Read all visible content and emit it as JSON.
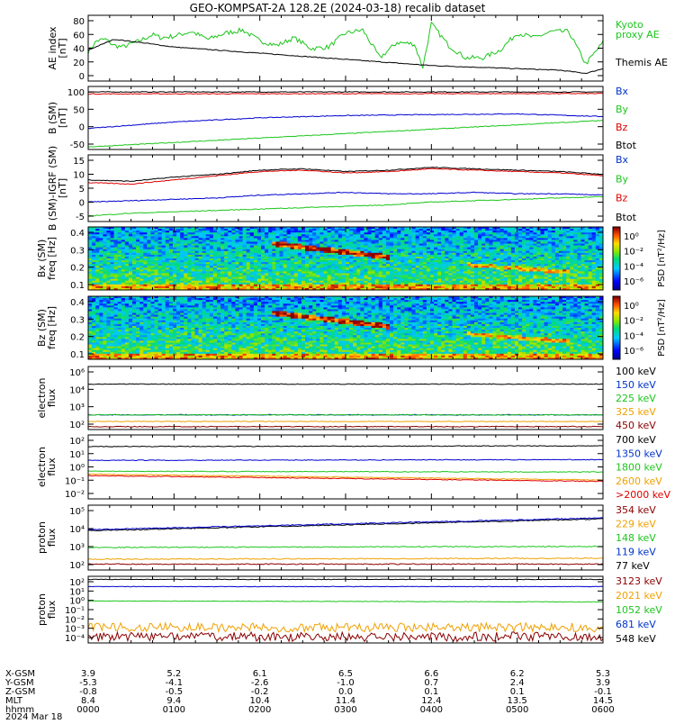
{
  "title": "GEO-KOMPSAT-2A 128.2E (2024-03-18) recalib dataset",
  "colors": {
    "black": "#000000",
    "green": "#1cc61c",
    "red": "#e00000",
    "blue": "#0000d0",
    "orange": "#f0a000",
    "darkred": "#8b0000",
    "legend_blue": "#0033cc"
  },
  "chart_data": [
    {
      "panel": "ae_index",
      "type": "line",
      "ylabel": [
        "AE index",
        "[nT]"
      ],
      "yticks": [
        "80",
        "60",
        "40",
        "20",
        "0"
      ],
      "ylim": [
        0,
        85
      ],
      "legend": [
        {
          "label": "Kyoto\nproxy AE",
          "color": "green"
        },
        {
          "label": "Themis AE",
          "color": "black"
        }
      ],
      "series": [
        {
          "name": "Kyoto proxy AE",
          "color": "green",
          "x": [
            0,
            0.1,
            0.2,
            0.3,
            0.4,
            0.5,
            0.6,
            0.75,
            0.85,
            1,
            1.2,
            1.4,
            1.6,
            1.8,
            2,
            2.2,
            2.4,
            2.6,
            2.8,
            3,
            3.2,
            3.4,
            3.6,
            3.8,
            3.9,
            4,
            4.2,
            4.4,
            4.6,
            4.8,
            5,
            5.2,
            5.4,
            5.6,
            5.8,
            6
          ],
          "y": [
            38,
            52,
            54,
            46,
            44,
            48,
            52,
            60,
            56,
            58,
            64,
            54,
            62,
            66,
            52,
            46,
            56,
            42,
            44,
            62,
            66,
            30,
            50,
            48,
            18,
            74,
            46,
            30,
            30,
            40,
            62,
            56,
            64,
            64,
            22,
            50
          ]
        },
        {
          "name": "Themis AE",
          "color": "black",
          "x": [
            0,
            0.3,
            0.6,
            1,
            1.5,
            2,
            2.5,
            3,
            3.5,
            4,
            4.5,
            5,
            5.5,
            5.8,
            6
          ],
          "y": [
            40,
            54,
            50,
            44,
            40,
            36,
            32,
            28,
            24,
            20,
            18,
            16,
            14,
            10,
            16
          ]
        }
      ]
    },
    {
      "panel": "b_sm",
      "type": "line",
      "ylabel": [
        "B (SM)",
        "[nT]"
      ],
      "yticks": [
        "100",
        "50",
        "0",
        "-50"
      ],
      "ylim": [
        -60,
        135
      ],
      "legend": [
        {
          "label": "Bx",
          "color": "legend_blue"
        },
        {
          "label": "By",
          "color": "green"
        },
        {
          "label": "Bz",
          "color": "red"
        },
        {
          "label": "Btot",
          "color": "black"
        }
      ],
      "series": [
        {
          "name": "Btot",
          "color": "black",
          "x": [
            0,
            6
          ],
          "y": [
            118,
            118
          ]
        },
        {
          "name": "Bz",
          "color": "red",
          "x": [
            0,
            6
          ],
          "y": [
            112,
            113
          ]
        },
        {
          "name": "Bx",
          "color": "blue",
          "x": [
            0,
            1,
            2,
            3,
            4,
            5,
            6
          ],
          "y": [
            5,
            25,
            38,
            45,
            48,
            50,
            42
          ]
        },
        {
          "name": "By",
          "color": "green",
          "x": [
            0,
            6
          ],
          "y": [
            -52,
            30
          ]
        }
      ]
    },
    {
      "panel": "b_sm_minus_igrf",
      "type": "line",
      "ylabel": [
        "B (SM)-IGRF (SM)",
        "[nT]"
      ],
      "yticks": [
        "15",
        "10",
        "5",
        "0",
        "-5"
      ],
      "ylim": [
        -7,
        17
      ],
      "legend": [
        {
          "label": "Bx",
          "color": "legend_blue"
        },
        {
          "label": "By",
          "color": "green"
        },
        {
          "label": "Bz",
          "color": "red"
        },
        {
          "label": "Btot",
          "color": "black"
        }
      ],
      "series": [
        {
          "name": "Btot",
          "color": "black",
          "x": [
            0,
            0.5,
            1,
            1.5,
            2,
            2.5,
            3,
            3.5,
            4,
            4.5,
            5,
            5.5,
            6
          ],
          "y": [
            8,
            7.5,
            9,
            10,
            11.5,
            12,
            11,
            11.5,
            12.5,
            12,
            11.5,
            11,
            10
          ]
        },
        {
          "name": "Bz",
          "color": "red",
          "x": [
            0,
            0.5,
            1,
            1.5,
            2,
            2.5,
            3,
            3.5,
            4,
            4.5,
            5,
            5.5,
            6
          ],
          "y": [
            7,
            6.5,
            8,
            9.5,
            11,
            11.5,
            10.5,
            11,
            12,
            11.5,
            11,
            10.5,
            9.5
          ]
        },
        {
          "name": "Bx",
          "color": "blue",
          "x": [
            0,
            0.5,
            1,
            1.5,
            2,
            2.5,
            3,
            3.5,
            4,
            4.5,
            5,
            5.5,
            6
          ],
          "y": [
            0,
            0.5,
            1,
            1.5,
            2.5,
            3,
            3.5,
            3,
            3,
            3.5,
            3,
            3,
            2.5
          ]
        },
        {
          "name": "By",
          "color": "green",
          "x": [
            0,
            0.5,
            1,
            1.5,
            2,
            2.5,
            3,
            3.5,
            4,
            4.5,
            5,
            5.5,
            6
          ],
          "y": [
            -5,
            -4,
            -3.5,
            -3,
            -2.5,
            -2,
            -1.5,
            -1,
            0,
            0.5,
            1,
            1.5,
            2
          ]
        }
      ]
    },
    {
      "panel": "bx_spectrogram",
      "type": "heatmap",
      "ylabel": [
        "Bx (SM)",
        "freq [Hz]"
      ],
      "yticks": [
        "0.4",
        "0.3",
        "0.2",
        "0.1"
      ],
      "ylim": [
        0,
        0.5
      ],
      "colorbar": {
        "label": "PSD [nT²/Hz]",
        "ticks": [
          "10⁰",
          "10⁻²",
          "10⁻⁴",
          "10⁻⁶"
        ]
      }
    },
    {
      "panel": "bz_spectrogram",
      "type": "heatmap",
      "ylabel": [
        "Bz (SM)",
        "freq [Hz]"
      ],
      "yticks": [
        "0.4",
        "0.3",
        "0.2",
        "0.1"
      ],
      "ylim": [
        0,
        0.5
      ],
      "colorbar": {
        "label": "PSD [nT²/Hz]",
        "ticks": [
          "10⁰",
          "10⁻²",
          "10⁻⁴",
          "10⁻⁶"
        ]
      }
    },
    {
      "panel": "electron_flux_low",
      "type": "line",
      "yscale": "log",
      "ylabel": [
        "electron",
        "flux"
      ],
      "yticks": [
        "10⁶",
        "10⁴",
        "10³",
        "10²"
      ],
      "ylim_log": [
        1.7,
        6
      ],
      "legend": [
        {
          "label": "100 keV",
          "color": "black"
        },
        {
          "label": "150 keV",
          "color": "legend_blue"
        },
        {
          "label": "225 keV",
          "color": "green"
        },
        {
          "label": "325 keV",
          "color": "orange"
        },
        {
          "label": "450 keV",
          "color": "darkred"
        }
      ],
      "series": [
        {
          "name": "100 keV",
          "color": "black",
          "x": [
            0,
            6
          ],
          "y_log": [
            4.8,
            4.8
          ]
        },
        {
          "name": "150 keV",
          "color": "blue",
          "x": [
            0,
            6
          ],
          "y_log": [
            2.7,
            2.7
          ]
        },
        {
          "name": "225 keV",
          "color": "green",
          "x": [
            0,
            6
          ],
          "y_log": [
            2.7,
            2.7
          ]
        },
        {
          "name": "325 keV",
          "color": "orange",
          "x": [
            0,
            6
          ],
          "y_log": [
            2.25,
            2.25
          ]
        },
        {
          "name": "450 keV",
          "color": "darkred",
          "x": [
            0,
            6
          ],
          "y_log": [
            1.9,
            1.9
          ]
        }
      ]
    },
    {
      "panel": "electron_flux_high",
      "type": "line",
      "yscale": "log",
      "ylabel": [
        "electron",
        "flux"
      ],
      "yticks": [
        "10²",
        "10¹",
        "10⁰",
        "10⁻¹",
        "10⁻²"
      ],
      "ylim_log": [
        -2.3,
        2.1
      ],
      "legend": [
        {
          "label": "700 keV",
          "color": "black"
        },
        {
          "label": "1350 keV",
          "color": "legend_blue"
        },
        {
          "label": "1800 keV",
          "color": "green"
        },
        {
          "label": "2600 keV",
          "color": "orange"
        },
        {
          "label": ">2000 keV",
          "color": "red"
        }
      ],
      "series": [
        {
          "name": "700 keV",
          "color": "black",
          "x": [
            0,
            6
          ],
          "y_log": [
            1.3,
            1.35
          ]
        },
        {
          "name": "1350 keV",
          "color": "blue",
          "x": [
            0,
            6
          ],
          "y_log": [
            0.35,
            0.4
          ]
        },
        {
          "name": "1800 keV",
          "color": "green",
          "x": [
            0,
            6
          ],
          "y_log": [
            -0.4,
            -0.45
          ]
        },
        {
          "name": "2600 keV",
          "color": "orange",
          "x": [
            0,
            3,
            6
          ],
          "y_log": [
            -0.6,
            -0.8,
            -1.0
          ]
        },
        {
          "name": ">2000 keV",
          "color": "red",
          "x": [
            0,
            3,
            6
          ],
          "y_log": [
            -0.7,
            -0.9,
            -1.1
          ]
        }
      ]
    },
    {
      "panel": "proton_flux_low",
      "type": "line",
      "yscale": "log",
      "ylabel": [
        "proton",
        "flux"
      ],
      "yticks": [
        "10⁵",
        "10⁴",
        "10³",
        "10²"
      ],
      "ylim_log": [
        1.7,
        5
      ],
      "legend": [
        {
          "label": "354 keV",
          "color": "darkred"
        },
        {
          "label": "229 keV",
          "color": "orange"
        },
        {
          "label": "148 keV",
          "color": "green"
        },
        {
          "label": "119 keV",
          "color": "legend_blue"
        },
        {
          "label": "77 keV",
          "color": "black"
        }
      ],
      "series": [
        {
          "name": "77 keV",
          "color": "black",
          "x": [
            0,
            6
          ],
          "y_log": [
            3.7,
            4.3
          ]
        },
        {
          "name": "119 keV",
          "color": "blue",
          "x": [
            0,
            6
          ],
          "y_log": [
            3.75,
            4.35
          ]
        },
        {
          "name": "148 keV",
          "color": "green",
          "x": [
            0,
            6
          ],
          "y_log": [
            2.85,
            2.9
          ]
        },
        {
          "name": "229 keV",
          "color": "orange",
          "x": [
            0,
            6
          ],
          "y_log": [
            2.25,
            2.3
          ]
        },
        {
          "name": "354 keV",
          "color": "darkred",
          "x": [
            0,
            6
          ],
          "y_log": [
            2.0,
            2.0
          ]
        }
      ]
    },
    {
      "panel": "proton_flux_high",
      "type": "line",
      "yscale": "log",
      "ylabel": [
        "proton",
        "flux"
      ],
      "yticks": [
        "10²",
        "10¹",
        "10⁰",
        "10⁻¹",
        "10⁻²",
        "10⁻³",
        "10⁻⁴"
      ],
      "ylim_log": [
        -4.2,
        2.3
      ],
      "legend": [
        {
          "label": "3123 keV",
          "color": "darkred"
        },
        {
          "label": "2021 keV",
          "color": "orange"
        },
        {
          "label": "1052 keV",
          "color": "green"
        },
        {
          "label": "681 keV",
          "color": "legend_blue"
        },
        {
          "label": "548 keV",
          "color": "black"
        }
      ],
      "series": [
        {
          "name": "548 keV",
          "color": "black",
          "x": [
            0,
            6
          ],
          "y_log": [
            2.0,
            2.0
          ]
        },
        {
          "name": "681 keV",
          "color": "blue",
          "x": [
            0,
            6
          ],
          "y_log": [
            1.3,
            1.3
          ]
        },
        {
          "name": "1052 keV",
          "color": "green",
          "x": [
            0,
            6
          ],
          "y_log": [
            -0.1,
            -0.2
          ]
        },
        {
          "name": "2021 keV",
          "color": "orange",
          "x": [
            0,
            6
          ],
          "y_log": [
            -2.7,
            -2.7
          ]
        },
        {
          "name": "3123 keV",
          "color": "darkred",
          "x": [
            0,
            6
          ],
          "y_log": [
            -3.6,
            -3.6
          ]
        }
      ]
    }
  ],
  "ephemeris": {
    "row_labels": [
      "X-GSM",
      "Y-GSM",
      "Z-GSM",
      "MLT",
      "hhmm",
      "2024 Mar 18"
    ],
    "columns": [
      [
        "3.9",
        "-5.3",
        "-0.8",
        "8.4",
        "0000"
      ],
      [
        "5.2",
        "-4.1",
        "-0.5",
        "9.4",
        "0100"
      ],
      [
        "6.1",
        "-2.6",
        "-0.2",
        "10.4",
        "0200"
      ],
      [
        "6.5",
        "-1.0",
        "0.0",
        "11.4",
        "0300"
      ],
      [
        "6.6",
        "0.7",
        "0.1",
        "12.4",
        "0400"
      ],
      [
        "6.2",
        "2.4",
        "0.1",
        "13.5",
        "0500"
      ],
      [
        "5.3",
        "3.9",
        "-0.1",
        "14.5",
        "0600"
      ]
    ]
  }
}
